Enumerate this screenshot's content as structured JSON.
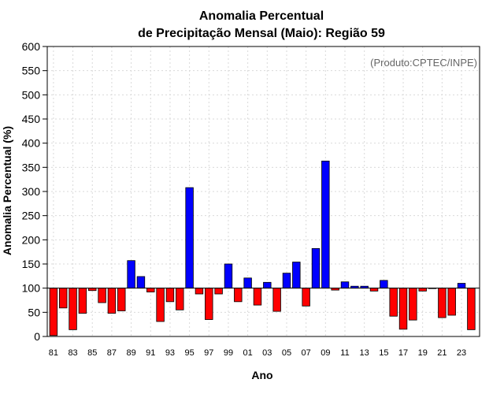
{
  "chart_data": {
    "type": "bar",
    "title_line1": "Anomalia Percentual",
    "title_line2": "de Precipitação Mensal (Maio): Região 59",
    "xlabel": "Ano",
    "ylabel": "Anomalia Percentual (%)",
    "credit": "(Produto:CPTEC/INPE)",
    "ylim": [
      0,
      600
    ],
    "yticks": [
      0,
      50,
      100,
      150,
      200,
      250,
      300,
      350,
      400,
      450,
      500,
      550,
      600
    ],
    "baseline": 100,
    "colors": {
      "above": "#0000ff",
      "below": "#ff0000",
      "baseline": "#000000"
    },
    "categories": [
      "81",
      "82",
      "83",
      "84",
      "85",
      "86",
      "87",
      "88",
      "89",
      "90",
      "91",
      "92",
      "93",
      "94",
      "95",
      "96",
      "97",
      "98",
      "99",
      "00",
      "01",
      "02",
      "03",
      "04",
      "05",
      "06",
      "07",
      "08",
      "09",
      "10",
      "11",
      "12",
      "13",
      "14",
      "15",
      "16",
      "17",
      "18",
      "19",
      "20",
      "21",
      "22",
      "23",
      "24"
    ],
    "x_tick_labels": [
      "81",
      "83",
      "85",
      "87",
      "89",
      "91",
      "93",
      "95",
      "97",
      "99",
      "01",
      "03",
      "05",
      "07",
      "09",
      "11",
      "13",
      "15",
      "17",
      "19",
      "21",
      "23"
    ],
    "values": [
      2,
      59,
      14,
      48,
      95,
      70,
      48,
      53,
      157,
      124,
      92,
      31,
      72,
      55,
      308,
      88,
      35,
      88,
      150,
      72,
      121,
      65,
      112,
      52,
      131,
      154,
      63,
      182,
      363,
      96,
      113,
      104,
      104,
      94,
      116,
      42,
      15,
      34,
      94,
      100,
      39,
      44,
      110,
      14
    ]
  }
}
